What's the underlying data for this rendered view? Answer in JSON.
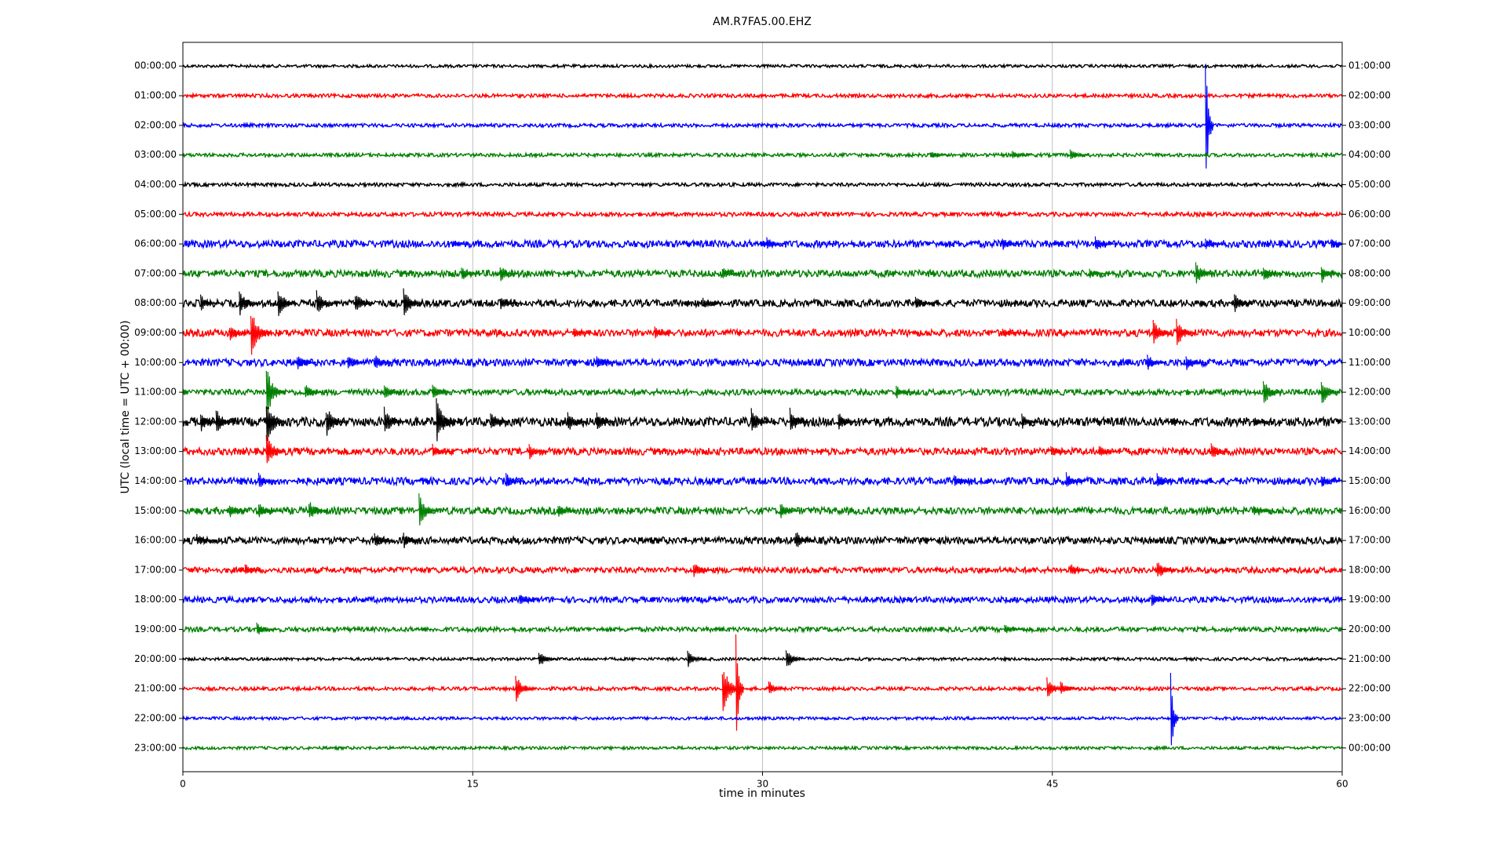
{
  "chart_data": {
    "type": "dayplot",
    "title": "AM.R7FA5.00.EHZ",
    "x_label": "time in minutes",
    "y_label": "UTC (local time = UTC + 00:00)",
    "xlim": [
      0,
      60
    ],
    "xticks": [
      0,
      15,
      30,
      45,
      60
    ],
    "grid": true,
    "rows": [
      {
        "label": "00:00:00",
        "right_label": "01:00:00",
        "color": "#000000",
        "noise": 0.05,
        "events": []
      },
      {
        "label": "01:00:00",
        "right_label": "02:00:00",
        "color": "#ff0000",
        "noise": 0.06,
        "events": []
      },
      {
        "label": "02:00:00",
        "right_label": "03:00:00",
        "color": "#0000ff",
        "noise": 0.06,
        "events": [
          [
            53,
            2.7
          ]
        ]
      },
      {
        "label": "03:00:00",
        "right_label": "04:00:00",
        "color": "#008000",
        "noise": 0.06,
        "events": [
          [
            38.8,
            0.15
          ],
          [
            43,
            0.15
          ],
          [
            46,
            0.2
          ]
        ]
      },
      {
        "label": "04:00:00",
        "right_label": "05:00:00",
        "color": "#000000",
        "noise": 0.06,
        "events": []
      },
      {
        "label": "05:00:00",
        "right_label": "06:00:00",
        "color": "#ff0000",
        "noise": 0.07,
        "events": []
      },
      {
        "label": "06:00:00",
        "right_label": "07:00:00",
        "color": "#0000ff",
        "noise": 0.12,
        "events": [
          [
            14,
            0.15
          ],
          [
            30.3,
            0.25
          ],
          [
            42.5,
            0.25
          ],
          [
            47.3,
            0.3
          ],
          [
            53,
            0.2
          ],
          [
            59.5,
            0.2
          ]
        ]
      },
      {
        "label": "07:00:00",
        "right_label": "08:00:00",
        "color": "#008000",
        "noise": 0.12,
        "events": [
          [
            14.5,
            0.3
          ],
          [
            16.5,
            0.3
          ],
          [
            28,
            0.25
          ],
          [
            47,
            0.2
          ],
          [
            52.5,
            0.4
          ],
          [
            56,
            0.35
          ],
          [
            59,
            0.35
          ]
        ]
      },
      {
        "label": "08:00:00",
        "right_label": "09:00:00",
        "color": "#000000",
        "noise": 0.12,
        "events": [
          [
            1,
            0.3
          ],
          [
            3,
            0.5
          ],
          [
            5,
            0.55
          ],
          [
            7,
            0.45
          ],
          [
            9,
            0.45
          ],
          [
            11.5,
            0.6
          ],
          [
            16.5,
            0.3
          ],
          [
            27,
            0.2
          ],
          [
            38,
            0.25
          ],
          [
            54.5,
            0.35
          ]
        ]
      },
      {
        "label": "09:00:00",
        "right_label": "10:00:00",
        "color": "#ff0000",
        "noise": 0.12,
        "events": [
          [
            2.5,
            0.3
          ],
          [
            3.6,
            0.9
          ],
          [
            20.3,
            0.25
          ],
          [
            24.5,
            0.25
          ],
          [
            42.5,
            0.2
          ],
          [
            50.3,
            0.5
          ],
          [
            51.5,
            0.55
          ]
        ]
      },
      {
        "label": "10:00:00",
        "right_label": "11:00:00",
        "color": "#0000ff",
        "noise": 0.12,
        "events": [
          [
            6,
            0.3
          ],
          [
            8.6,
            0.3
          ],
          [
            10,
            0.3
          ],
          [
            21.5,
            0.3
          ],
          [
            50,
            0.3
          ],
          [
            52,
            0.3
          ]
        ]
      },
      {
        "label": "11:00:00",
        "right_label": "12:00:00",
        "color": "#008000",
        "noise": 0.1,
        "events": [
          [
            4.4,
            0.9
          ],
          [
            6.4,
            0.3
          ],
          [
            10.5,
            0.3
          ],
          [
            13,
            0.4
          ],
          [
            37,
            0.25
          ],
          [
            56,
            0.5
          ],
          [
            59,
            0.5
          ]
        ]
      },
      {
        "label": "12:00:00",
        "right_label": "13:00:00",
        "color": "#000000",
        "noise": 0.15,
        "events": [
          [
            1,
            0.4
          ],
          [
            1.8,
            0.5
          ],
          [
            4.4,
            0.9
          ],
          [
            7.5,
            0.6
          ],
          [
            10.5,
            0.6
          ],
          [
            13.2,
            0.9
          ],
          [
            16,
            0.4
          ],
          [
            20,
            0.4
          ],
          [
            21.5,
            0.4
          ],
          [
            29.5,
            0.5
          ],
          [
            31.5,
            0.5
          ],
          [
            34,
            0.35
          ],
          [
            43.5,
            0.3
          ],
          [
            55.5,
            0.2
          ]
        ]
      },
      {
        "label": "13:00:00",
        "right_label": "14:00:00",
        "color": "#ff0000",
        "noise": 0.12,
        "events": [
          [
            4.4,
            0.7
          ],
          [
            13,
            0.3
          ],
          [
            18,
            0.3
          ],
          [
            45,
            0.25
          ],
          [
            47.5,
            0.25
          ],
          [
            53.3,
            0.35
          ]
        ]
      },
      {
        "label": "14:00:00",
        "right_label": "15:00:00",
        "color": "#0000ff",
        "noise": 0.12,
        "events": [
          [
            4,
            0.3
          ],
          [
            16.8,
            0.3
          ],
          [
            40,
            0.25
          ],
          [
            45.8,
            0.3
          ],
          [
            50.5,
            0.3
          ],
          [
            59,
            0.25
          ]
        ]
      },
      {
        "label": "15:00:00",
        "right_label": "16:00:00",
        "color": "#008000",
        "noise": 0.12,
        "events": [
          [
            2.5,
            0.3
          ],
          [
            4,
            0.3
          ],
          [
            6.6,
            0.4
          ],
          [
            12.3,
            0.6
          ],
          [
            19.5,
            0.3
          ],
          [
            31,
            0.3
          ],
          [
            55.5,
            0.2
          ]
        ]
      },
      {
        "label": "16:00:00",
        "right_label": "17:00:00",
        "color": "#000000",
        "noise": 0.12,
        "events": [
          [
            0.8,
            0.25
          ],
          [
            10,
            0.3
          ],
          [
            11.5,
            0.3
          ],
          [
            31.8,
            0.35
          ]
        ]
      },
      {
        "label": "17:00:00",
        "right_label": "18:00:00",
        "color": "#ff0000",
        "noise": 0.1,
        "events": [
          [
            3.3,
            0.25
          ],
          [
            26.5,
            0.3
          ],
          [
            46,
            0.25
          ],
          [
            50.5,
            0.4
          ]
        ]
      },
      {
        "label": "18:00:00",
        "right_label": "19:00:00",
        "color": "#0000ff",
        "noise": 0.1,
        "events": [
          [
            17.5,
            0.25
          ],
          [
            50.2,
            0.3
          ]
        ]
      },
      {
        "label": "19:00:00",
        "right_label": "20:00:00",
        "color": "#008000",
        "noise": 0.08,
        "events": [
          [
            3.9,
            0.25
          ],
          [
            42.6,
            0.2
          ]
        ]
      },
      {
        "label": "20:00:00",
        "right_label": "21:00:00",
        "color": "#000000",
        "noise": 0.05,
        "events": [
          [
            18.5,
            0.3
          ],
          [
            26.2,
            0.3
          ],
          [
            31.3,
            0.4
          ]
        ]
      },
      {
        "label": "21:00:00",
        "right_label": "22:00:00",
        "color": "#ff0000",
        "noise": 0.06,
        "events": [
          [
            17.3,
            0.5
          ],
          [
            28.0,
            0.9
          ],
          [
            28.7,
            2.2
          ],
          [
            30.4,
            0.3
          ],
          [
            44.8,
            0.4
          ],
          [
            45.5,
            0.3
          ]
        ]
      },
      {
        "label": "22:00:00",
        "right_label": "23:00:00",
        "color": "#0000ff",
        "noise": 0.05,
        "events": [
          [
            51.2,
            1.6
          ]
        ]
      },
      {
        "label": "23:00:00",
        "right_label": "00:00:00",
        "color": "#008000",
        "noise": 0.05,
        "events": []
      }
    ]
  }
}
